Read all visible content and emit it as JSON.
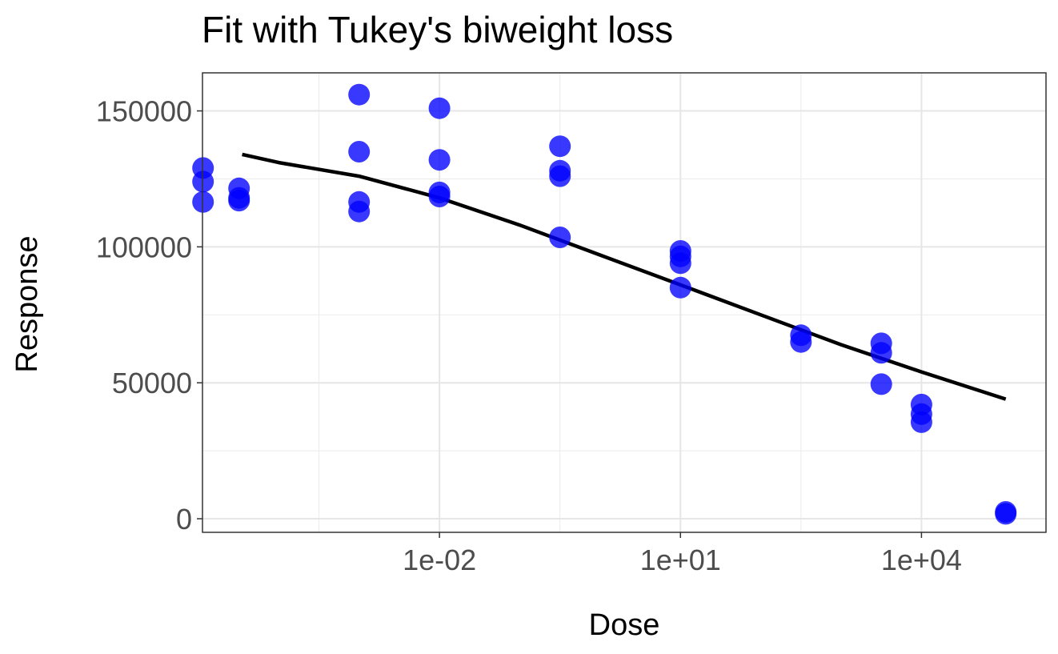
{
  "chart_data": {
    "type": "scatter",
    "title": "Fit with Tukey's biweight loss",
    "xlabel": "Dose",
    "ylabel": "Response",
    "x_scale": "log10",
    "xlim_log10": [
      -4.95,
      5.55
    ],
    "ylim": [
      -5000,
      164000
    ],
    "grid": true,
    "x_ticks": [
      {
        "log10": -2,
        "label": "1e-02"
      },
      {
        "log10": 1,
        "label": "1e+01"
      },
      {
        "log10": 4,
        "label": "1e+04"
      }
    ],
    "x_minor_log10": [
      -3.5,
      -0.5,
      2.5
    ],
    "y_ticks": [
      {
        "value": 0,
        "label": "0"
      },
      {
        "value": 50000,
        "label": "50000"
      },
      {
        "value": 100000,
        "label": "100000"
      },
      {
        "value": 150000,
        "label": "150000"
      }
    ],
    "y_minor": [
      25000,
      75000,
      125000
    ],
    "point_color": "#0000ff",
    "line_color": "#000000",
    "series": [
      {
        "name": "observed",
        "type": "scatter",
        "points": [
          {
            "dose": 1.14e-05,
            "response": 129000
          },
          {
            "dose": 1.14e-05,
            "response": 124000
          },
          {
            "dose": 1.14e-05,
            "response": 116500
          },
          {
            "dose": 3.2e-05,
            "response": 121500
          },
          {
            "dose": 3.2e-05,
            "response": 118000
          },
          {
            "dose": 3.2e-05,
            "response": 117000
          },
          {
            "dose": 0.001,
            "response": 156000
          },
          {
            "dose": 0.001,
            "response": 135000
          },
          {
            "dose": 0.001,
            "response": 116500
          },
          {
            "dose": 0.001,
            "response": 113000
          },
          {
            "dose": 0.01,
            "response": 151000
          },
          {
            "dose": 0.01,
            "response": 132000
          },
          {
            "dose": 0.01,
            "response": 120000
          },
          {
            "dose": 0.01,
            "response": 118500
          },
          {
            "dose": 0.316,
            "response": 137000
          },
          {
            "dose": 0.316,
            "response": 128000
          },
          {
            "dose": 0.316,
            "response": 126000
          },
          {
            "dose": 0.316,
            "response": 103500
          },
          {
            "dose": 10,
            "response": 98500
          },
          {
            "dose": 10,
            "response": 96500
          },
          {
            "dose": 10,
            "response": 94000
          },
          {
            "dose": 10,
            "response": 85000
          },
          {
            "dose": 316,
            "response": 67500
          },
          {
            "dose": 316,
            "response": 65000
          },
          {
            "dose": 3162,
            "response": 64500
          },
          {
            "dose": 3162,
            "response": 61000
          },
          {
            "dose": 3162,
            "response": 49500
          },
          {
            "dose": 10000,
            "response": 42000
          },
          {
            "dose": 10000,
            "response": 38500
          },
          {
            "dose": 10000,
            "response": 35500
          },
          {
            "dose": 112000,
            "response": 2500
          },
          {
            "dose": 112000,
            "response": 1800
          }
        ]
      },
      {
        "name": "fit",
        "type": "line",
        "points": [
          {
            "dose": 3.5e-05,
            "response": 134000
          },
          {
            "dose": 0.0001,
            "response": 131000
          },
          {
            "dose": 0.001,
            "response": 126000
          },
          {
            "dose": 0.01,
            "response": 118000
          },
          {
            "dose": 0.1,
            "response": 108000
          },
          {
            "dose": 1,
            "response": 97000
          },
          {
            "dose": 10,
            "response": 86000
          },
          {
            "dose": 100,
            "response": 75000
          },
          {
            "dose": 1000,
            "response": 64000
          },
          {
            "dose": 10000,
            "response": 54000
          },
          {
            "dose": 112000,
            "response": 44000
          }
        ]
      }
    ]
  }
}
